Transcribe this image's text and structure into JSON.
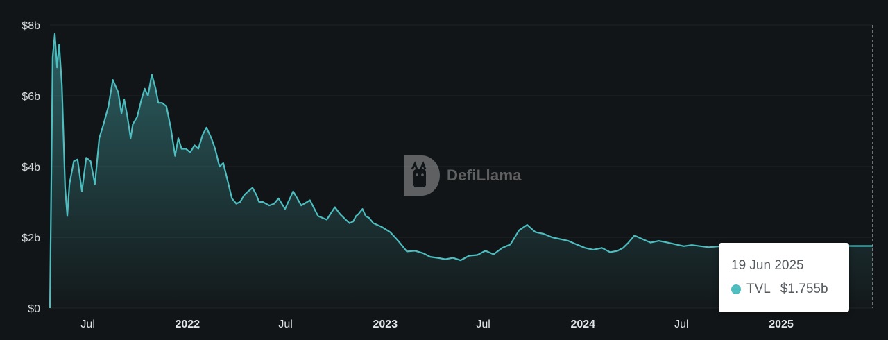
{
  "chart_data": {
    "type": "area",
    "series": [
      {
        "name": "TVL",
        "color": "#4dbdc0",
        "x": [
          "2021-04-22",
          "2021-04-27",
          "2021-05-01",
          "2021-05-05",
          "2021-05-09",
          "2021-05-14",
          "2021-05-20",
          "2021-05-24",
          "2021-05-28",
          "2021-06-05",
          "2021-06-12",
          "2021-06-20",
          "2021-06-28",
          "2021-07-06",
          "2021-07-14",
          "2021-07-22",
          "2021-07-30",
          "2021-08-08",
          "2021-08-16",
          "2021-08-26",
          "2021-09-01",
          "2021-09-06",
          "2021-09-12",
          "2021-09-18",
          "2021-09-22",
          "2021-09-30",
          "2021-10-08",
          "2021-10-14",
          "2021-10-20",
          "2021-10-27",
          "2021-11-03",
          "2021-11-08",
          "2021-11-15",
          "2021-11-23",
          "2021-12-01",
          "2021-12-09",
          "2021-12-15",
          "2021-12-21",
          "2021-12-29",
          "2022-01-06",
          "2022-01-14",
          "2022-01-21",
          "2022-01-29",
          "2022-02-05",
          "2022-02-14",
          "2022-02-21",
          "2022-03-01",
          "2022-03-08",
          "2022-03-16",
          "2022-03-24",
          "2022-04-01",
          "2022-04-08",
          "2022-04-16",
          "2022-04-23",
          "2022-05-01",
          "2022-05-08",
          "2022-05-13",
          "2022-05-20",
          "2022-06-01",
          "2022-06-10",
          "2022-06-18",
          "2022-06-30",
          "2022-07-15",
          "2022-07-30",
          "2022-08-15",
          "2022-08-30",
          "2022-09-15",
          "2022-09-30",
          "2022-10-10",
          "2022-10-20",
          "2022-10-27",
          "2022-11-03",
          "2022-11-08",
          "2022-11-12",
          "2022-11-20",
          "2022-11-26",
          "2022-12-02",
          "2022-12-10",
          "2022-12-25",
          "2023-01-10",
          "2023-01-25",
          "2023-02-10",
          "2023-02-25",
          "2023-03-12",
          "2023-03-25",
          "2023-04-08",
          "2023-04-22",
          "2023-05-06",
          "2023-05-20",
          "2023-06-05",
          "2023-06-20",
          "2023-07-05",
          "2023-07-20",
          "2023-08-05",
          "2023-08-20",
          "2023-09-05",
          "2023-09-20",
          "2023-10-05",
          "2023-10-20",
          "2023-11-05",
          "2023-11-20",
          "2023-12-05",
          "2023-12-20",
          "2024-01-05",
          "2024-01-20",
          "2024-02-05",
          "2024-02-20",
          "2024-03-05",
          "2024-03-15",
          "2024-03-25",
          "2024-04-05",
          "2024-04-20",
          "2024-05-05",
          "2024-05-20",
          "2024-06-05",
          "2024-06-20",
          "2024-07-05",
          "2024-07-20",
          "2024-08-05",
          "2024-08-20",
          "2024-09-05",
          "2024-09-20",
          "2024-10-05",
          "2024-10-20",
          "2024-11-05",
          "2024-11-20",
          "2024-12-05",
          "2024-12-20",
          "2025-01-05",
          "2025-01-20",
          "2025-02-05",
          "2025-02-20",
          "2025-03-05",
          "2025-03-20",
          "2025-04-05",
          "2025-04-20",
          "2025-05-05",
          "2025-05-20",
          "2025-06-05",
          "2025-06-19"
        ],
        "values": [
          0.0,
          7.1,
          7.75,
          6.8,
          7.45,
          6.3,
          3.4,
          2.6,
          3.5,
          4.15,
          4.2,
          3.3,
          4.25,
          4.15,
          3.5,
          4.8,
          5.2,
          5.7,
          6.45,
          6.1,
          5.5,
          5.9,
          5.4,
          4.8,
          5.2,
          5.4,
          5.9,
          6.2,
          6.0,
          6.6,
          6.2,
          5.8,
          5.8,
          5.7,
          5.1,
          4.3,
          4.8,
          4.5,
          4.5,
          4.4,
          4.6,
          4.5,
          4.9,
          5.1,
          4.8,
          4.5,
          4.0,
          4.1,
          3.6,
          3.1,
          2.95,
          3.0,
          3.2,
          3.3,
          3.4,
          3.2,
          3.0,
          3.0,
          2.9,
          2.95,
          3.1,
          2.8,
          3.3,
          2.9,
          3.05,
          2.6,
          2.5,
          2.85,
          2.65,
          2.5,
          2.4,
          2.45,
          2.6,
          2.65,
          2.8,
          2.6,
          2.55,
          2.4,
          2.3,
          2.15,
          1.9,
          1.6,
          1.62,
          1.55,
          1.45,
          1.42,
          1.38,
          1.42,
          1.35,
          1.48,
          1.5,
          1.62,
          1.52,
          1.7,
          1.8,
          2.2,
          2.35,
          2.15,
          2.1,
          2.0,
          1.95,
          1.9,
          1.8,
          1.7,
          1.65,
          1.7,
          1.58,
          1.62,
          1.7,
          1.85,
          2.05,
          1.95,
          1.85,
          1.9,
          1.85,
          1.8,
          1.75,
          1.78,
          1.75,
          1.72,
          1.74,
          1.76,
          1.75,
          1.77,
          1.74,
          1.76,
          1.73,
          1.75,
          1.755,
          1.755,
          1.755,
          1.755,
          1.755,
          1.755,
          1.755,
          1.755,
          1.755,
          1.755,
          1.755,
          1.755
        ]
      }
    ],
    "yticks": [
      "$0",
      "$2b",
      "$4b",
      "$6b",
      "$8b"
    ],
    "ytick_values": [
      0,
      2,
      4,
      6,
      8
    ],
    "ylim": [
      0,
      8
    ],
    "xlim": [
      "2021-04-22",
      "2025-06-19"
    ],
    "xticks": [
      {
        "label": "Jul",
        "date": "2021-07-01",
        "major": false
      },
      {
        "label": "2022",
        "date": "2022-01-01",
        "major": true
      },
      {
        "label": "Jul",
        "date": "2022-07-01",
        "major": false
      },
      {
        "label": "2023",
        "date": "2023-01-01",
        "major": true
      },
      {
        "label": "Jul",
        "date": "2023-07-01",
        "major": false
      },
      {
        "label": "2024",
        "date": "2024-01-01",
        "major": true
      },
      {
        "label": "Jul",
        "date": "2024-07-01",
        "major": false
      },
      {
        "label": "2025",
        "date": "2025-01-01",
        "major": true
      }
    ],
    "grid": true,
    "legend": "none"
  },
  "watermark": {
    "text": "DefiLlama"
  },
  "tooltip": {
    "date": "19 Jun 2025",
    "series_label": "TVL",
    "value": "$1.755b",
    "dot_color": "#4dbdc0"
  },
  "colors": {
    "background": "#121517",
    "line": "#4dbdc0",
    "grid": "#1e2427"
  }
}
